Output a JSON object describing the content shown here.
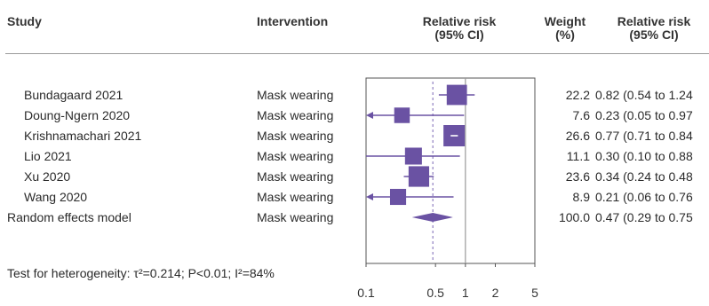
{
  "headers": {
    "study": "Study",
    "intervention": "Intervention",
    "rr_line1": "Relative risk",
    "rr_line2": "(95% CI)",
    "weight_line1": "Weight",
    "weight_line2": "(%)",
    "rrtext_line1": "Relative risk",
    "rrtext_line2": "(95% CI)"
  },
  "heterogeneity": "Test for heterogeneity: τ²=0.214; P<0.01; I²=84%",
  "colors": {
    "marker": "#6a52a3",
    "axis": "#555555",
    "null_line": "#9a9a9a",
    "summary_line": "#7a66b5"
  },
  "chart_data": {
    "type": "forest",
    "x_scale": "log",
    "xlim": [
      0.1,
      5
    ],
    "x_ticks": [
      0.1,
      0.5,
      1,
      2,
      5
    ],
    "x_tick_labels": [
      "0.1",
      "0.5",
      "1",
      "2",
      "5"
    ],
    "null_value": 1,
    "summary_value": 0.47,
    "studies": [
      {
        "study": "Bundagaard 2021",
        "intervention": "Mask wearing",
        "rr": 0.82,
        "lo": 0.54,
        "hi": 1.24,
        "weight": "22.2",
        "ci_text": "0.82 (0.54 to 1.24"
      },
      {
        "study": "Doung-Ngern 2020",
        "intervention": "Mask wearing",
        "rr": 0.23,
        "lo": 0.05,
        "hi": 0.97,
        "weight": "7.6",
        "ci_text": "0.23 (0.05 to 0.97"
      },
      {
        "study": "Krishnamachari 2021",
        "intervention": "Mask wearing",
        "rr": 0.77,
        "lo": 0.71,
        "hi": 0.84,
        "weight": "26.6",
        "ci_text": "0.77 (0.71 to 0.84"
      },
      {
        "study": "Lio 2021",
        "intervention": "Mask wearing",
        "rr": 0.3,
        "lo": 0.1,
        "hi": 0.88,
        "weight": "11.1",
        "ci_text": "0.30 (0.10 to 0.88"
      },
      {
        "study": "Xu 2020",
        "intervention": "Mask wearing",
        "rr": 0.34,
        "lo": 0.24,
        "hi": 0.48,
        "weight": "23.6",
        "ci_text": "0.34 (0.24 to 0.48"
      },
      {
        "study": "Wang 2020",
        "intervention": "Mask wearing",
        "rr": 0.21,
        "lo": 0.06,
        "hi": 0.76,
        "weight": "8.9",
        "ci_text": "0.21 (0.06 to 0.76"
      }
    ],
    "summary": {
      "study": "Random effects model",
      "intervention": "Mask wearing",
      "rr": 0.47,
      "lo": 0.29,
      "hi": 0.75,
      "weight": "100.0",
      "ci_text": "0.47 (0.29 to 0.75"
    }
  }
}
